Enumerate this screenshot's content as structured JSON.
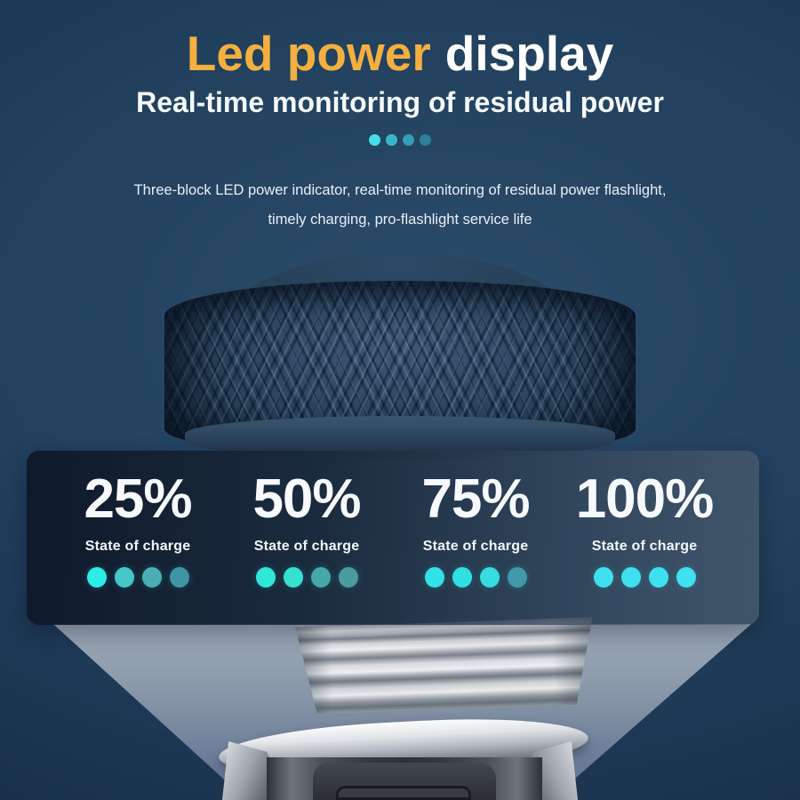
{
  "colors": {
    "background_navy": "#1f3b56",
    "accent_amber": "#F3AF40",
    "bright_charge_dot": "#2BE3DF",
    "beam_gray": "#8B99AA"
  },
  "header": {
    "title_accent": "Led power",
    "title_rest": "display",
    "subtitle": "Real-time monitoring of residual power",
    "progress_dots": [
      "#45DFE8",
      "#38B7CA",
      "#339FB8",
      "#2E7F9B"
    ]
  },
  "description": {
    "line1": "Three-block LED power indicator, real-time monitoring of residual power flashlight,",
    "line2": "timely charging, pro-flashlight service life"
  },
  "charge_panel": {
    "state_label": "State of charge",
    "states": [
      {
        "percent": "25%",
        "lit_dots": 1,
        "dots": [
          "#2BEDE6",
          "#43C8C7",
          "#49AFB2",
          "#3F95A3"
        ]
      },
      {
        "percent": "50%",
        "lit_dots": 2,
        "dots": [
          "#30E8D6",
          "#36E2CF",
          "#45A8A8",
          "#4A9CA0"
        ]
      },
      {
        "percent": "75%",
        "lit_dots": 3,
        "dots": [
          "#32E2E6",
          "#31DFE3",
          "#35DCE0",
          "#4199A9"
        ]
      },
      {
        "percent": "100%",
        "lit_dots": 4,
        "dots": [
          "#3FDFEF",
          "#3EDFEF",
          "#3FE0F0",
          "#40E1F0"
        ]
      }
    ]
  }
}
